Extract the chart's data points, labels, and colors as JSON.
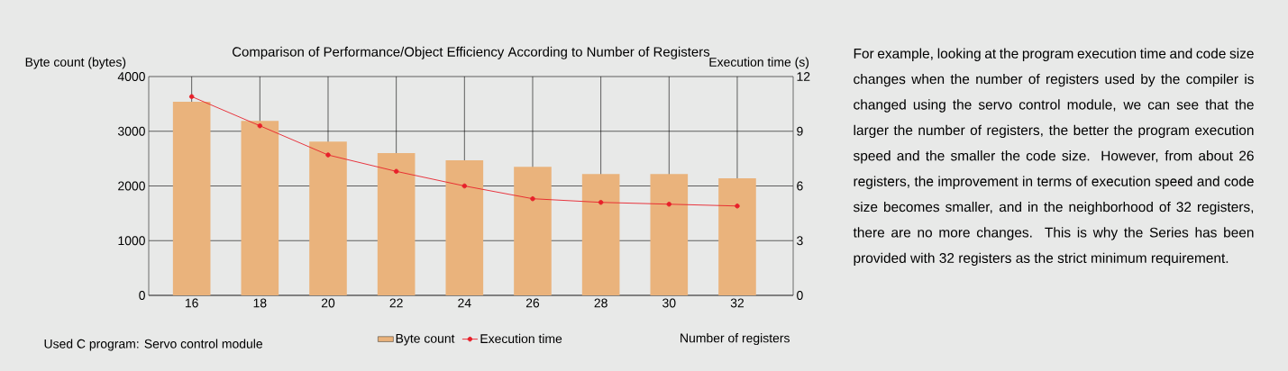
{
  "chart_data": {
    "type": "bar",
    "title": "Comparison of Performance/Object Efficiency According to Number of Registers",
    "xlabel": "Number of registers",
    "ylabel": "Byte count (bytes)",
    "y2label": "Execution time (s)",
    "categories": [
      "16",
      "18",
      "20",
      "22",
      "24",
      "26",
      "28",
      "30",
      "32"
    ],
    "series": [
      {
        "name": "Byte count",
        "color": "#eab37c",
        "values": [
          3540,
          3190,
          2810,
          2600,
          2470,
          2350,
          2220,
          2220,
          2140
        ]
      },
      {
        "name": "Execution time",
        "type": "line",
        "axis": "y2",
        "color": "#e8202a",
        "values": [
          10.9,
          9.3,
          7.7,
          6.8,
          6.0,
          5.3,
          5.1,
          5.0,
          4.9
        ]
      }
    ],
    "ylim": [
      0,
      4000
    ],
    "yticks": [
      0,
      1000,
      2000,
      3000,
      4000
    ],
    "y2lim": [
      0,
      12
    ],
    "y2ticks": [
      0,
      3,
      6,
      9,
      12
    ],
    "grid": true,
    "legend": "bottom",
    "marker": "circle",
    "line_style": "solid",
    "annotations": [
      "Used C program: Servo control module",
      "For example, looking at the program execution time and code size changes when the number of registers used by the compiler is changed using the servo control module, we can see that the larger the number of registers, the better the program execution speed and the smaller the code size. However, from about 26 registers, the improvement in terms of execution speed and code size becomes smaller, and in the neighborhood of 32 registers, there are no more changes. This is why the Series has been provided with 32 registers as the strict minimum requirement."
    ]
  }
}
